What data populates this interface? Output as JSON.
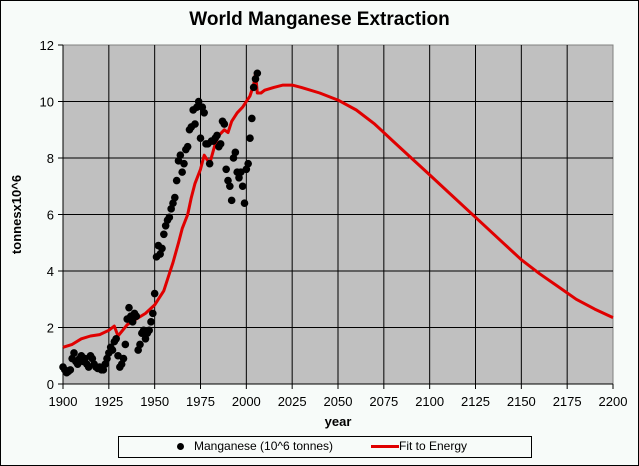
{
  "chart_data": {
    "type": "scatter",
    "title": "World Manganese Extraction",
    "xlabel": "year",
    "ylabel": "tonnesx10^6",
    "xlim": [
      1900,
      2200
    ],
    "ylim": [
      0,
      12
    ],
    "x_ticks": [
      1900,
      1925,
      1950,
      1975,
      2000,
      2025,
      2050,
      2075,
      2100,
      2125,
      2150,
      2175,
      2200
    ],
    "y_ticks": [
      0,
      2,
      4,
      6,
      8,
      10,
      12
    ],
    "grid": true,
    "legend_position": "bottom",
    "colors": {
      "plot_background": "#c0c0c0",
      "fit_line": "#e00000",
      "points": "#000000"
    },
    "series": [
      {
        "name": "Manganese (10^6 tonnes)",
        "type": "scatter",
        "x": [
          1900,
          1901,
          1902,
          1903,
          1904,
          1905,
          1906,
          1907,
          1908,
          1909,
          1910,
          1911,
          1912,
          1913,
          1914,
          1915,
          1916,
          1917,
          1918,
          1919,
          1920,
          1921,
          1922,
          1923,
          1924,
          1925,
          1926,
          1927,
          1928,
          1929,
          1930,
          1931,
          1932,
          1933,
          1934,
          1935,
          1936,
          1937,
          1938,
          1939,
          1940,
          1941,
          1942,
          1943,
          1944,
          1945,
          1946,
          1947,
          1948,
          1949,
          1950,
          1951,
          1952,
          1953,
          1954,
          1955,
          1956,
          1957,
          1958,
          1959,
          1960,
          1961,
          1962,
          1963,
          1964,
          1965,
          1966,
          1967,
          1968,
          1969,
          1970,
          1971,
          1972,
          1973,
          1974,
          1975,
          1976,
          1977,
          1978,
          1979,
          1980,
          1981,
          1982,
          1983,
          1984,
          1985,
          1986,
          1987,
          1988,
          1989,
          1990,
          1991,
          1992,
          1993,
          1994,
          1995,
          1996,
          1997,
          1998,
          1999,
          2000,
          2001,
          2002,
          2003,
          2004,
          2005,
          2006
        ],
        "y": [
          0.6,
          0.5,
          0.4,
          0.45,
          0.5,
          0.9,
          1.1,
          0.8,
          0.7,
          0.9,
          1.0,
          0.8,
          0.9,
          0.7,
          0.6,
          1.0,
          0.9,
          0.7,
          0.6,
          0.55,
          0.6,
          0.5,
          0.5,
          0.7,
          0.9,
          1.1,
          1.3,
          1.2,
          1.5,
          1.6,
          1.0,
          0.6,
          0.7,
          0.9,
          1.4,
          2.3,
          2.7,
          2.4,
          2.2,
          2.5,
          2.4,
          1.2,
          1.4,
          1.8,
          1.9,
          1.6,
          1.8,
          1.9,
          2.2,
          2.5,
          3.2,
          4.5,
          4.9,
          4.6,
          4.8,
          5.3,
          5.6,
          5.8,
          5.9,
          6.2,
          6.4,
          6.6,
          7.2,
          7.9,
          8.1,
          7.5,
          7.8,
          8.3,
          8.4,
          9.0,
          9.1,
          9.7,
          9.2,
          9.8,
          10.0,
          8.7,
          9.8,
          9.6,
          8.5,
          8.5,
          7.8,
          8.6,
          8.6,
          8.7,
          8.8,
          8.4,
          8.5,
          9.3,
          9.2,
          7.6,
          7.2,
          7.0,
          6.5,
          8.0,
          8.2,
          7.5,
          7.3,
          7.5,
          7.0,
          6.4,
          7.6,
          7.8,
          8.7,
          9.4,
          10.5,
          10.8,
          11.0
        ]
      },
      {
        "name": "Fit to Energy",
        "type": "line",
        "x": [
          1900,
          1905,
          1910,
          1915,
          1920,
          1925,
          1928,
          1930,
          1935,
          1940,
          1945,
          1950,
          1952,
          1955,
          1958,
          1960,
          1963,
          1965,
          1968,
          1970,
          1972,
          1975,
          1977,
          1980,
          1983,
          1985,
          1988,
          1990,
          1992,
          1995,
          1998,
          2000,
          2002,
          2004,
          2005,
          2006,
          2008,
          2010,
          2015,
          2020,
          2025,
          2030,
          2040,
          2050,
          2060,
          2070,
          2080,
          2090,
          2100,
          2110,
          2120,
          2130,
          2140,
          2150,
          2160,
          2170,
          2180,
          2190,
          2200
        ],
        "y": [
          1.3,
          1.4,
          1.6,
          1.7,
          1.75,
          1.9,
          2.05,
          1.7,
          2.1,
          2.3,
          2.5,
          2.8,
          3.0,
          3.3,
          3.9,
          4.3,
          5.0,
          5.5,
          6.0,
          6.6,
          7.1,
          7.6,
          8.1,
          7.8,
          8.5,
          8.8,
          9.0,
          8.9,
          9.3,
          9.6,
          9.8,
          10.0,
          10.2,
          10.6,
          11.0,
          10.3,
          10.3,
          10.4,
          10.5,
          10.58,
          10.58,
          10.5,
          10.3,
          10.05,
          9.7,
          9.2,
          8.6,
          8.0,
          7.4,
          6.8,
          6.2,
          5.6,
          5.0,
          4.4,
          3.9,
          3.45,
          3.0,
          2.65,
          2.35
        ]
      }
    ]
  },
  "legend": {
    "items": [
      {
        "label": "Manganese (10^6 tonnes)",
        "marker": "dot-icon"
      },
      {
        "label": "Fit to Energy",
        "marker": "line-icon"
      }
    ]
  }
}
